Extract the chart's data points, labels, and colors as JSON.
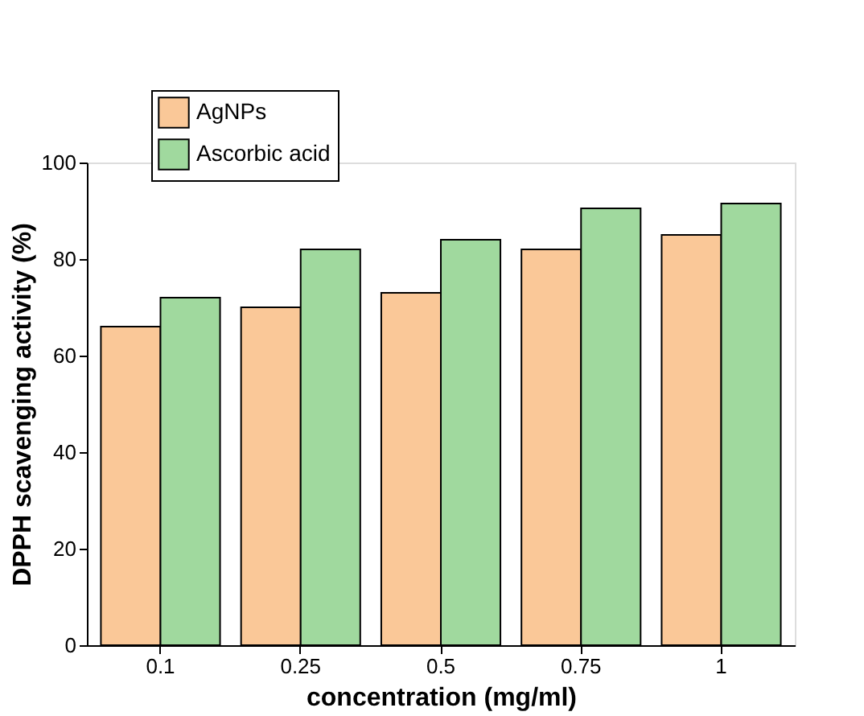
{
  "chart_data": {
    "type": "bar",
    "xlabel": "concentration (mg/ml)",
    "ylabel": "DPPH scavenging activity (%)",
    "categories": [
      "0.1",
      "0.25",
      "0.5",
      "0.75",
      "1"
    ],
    "series": [
      {
        "name": "AgNPs",
        "color": "#fac898",
        "values": [
          66,
          70,
          73,
          82,
          85
        ]
      },
      {
        "name": "Ascorbic acid",
        "color": "#a0d99e",
        "values": [
          72,
          82,
          84,
          90.5,
          91.5
        ]
      }
    ],
    "ylim": [
      0,
      100
    ],
    "yticks": [
      0,
      20,
      40,
      60,
      80,
      100
    ],
    "grid": false,
    "legend": "top left"
  }
}
